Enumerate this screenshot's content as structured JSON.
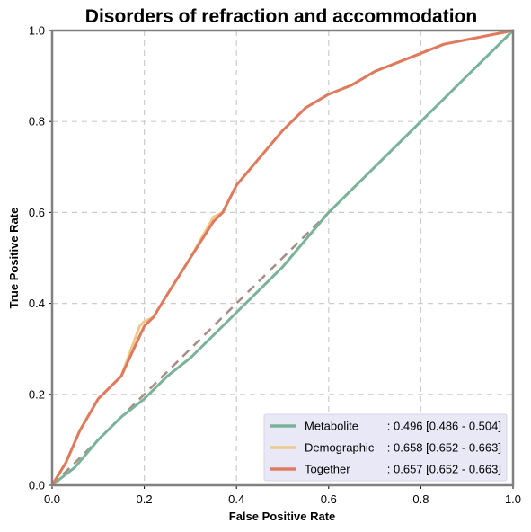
{
  "chart_data": {
    "type": "line",
    "title": "Disorders of refraction and accommodation",
    "xlabel": "False Positive Rate",
    "ylabel": "True Positive Rate",
    "xlim": [
      0,
      1
    ],
    "ylim": [
      0,
      1
    ],
    "xticks": [
      "0.0",
      "0.2",
      "0.4",
      "0.6",
      "0.8",
      "1.0"
    ],
    "yticks": [
      "0.0",
      "0.2",
      "0.4",
      "0.6",
      "0.8",
      "1.0"
    ],
    "grid": true,
    "legend_position": "bottom-right",
    "diagonal": {
      "x": [
        0,
        1
      ],
      "y": [
        0,
        1
      ],
      "color": "#a88d85",
      "style": "dashed"
    },
    "series": [
      {
        "name": "Metabolite",
        "auc_label": ": 0.496 [0.486 - 0.504]",
        "color": "#7ab39a",
        "x": [
          0,
          0.05,
          0.1,
          0.15,
          0.2,
          0.25,
          0.3,
          0.35,
          0.4,
          0.45,
          0.5,
          0.55,
          0.6,
          0.65,
          0.7,
          0.75,
          0.8,
          0.85,
          0.9,
          0.95,
          1.0
        ],
        "y": [
          0,
          0.04,
          0.1,
          0.15,
          0.19,
          0.24,
          0.28,
          0.33,
          0.38,
          0.43,
          0.48,
          0.54,
          0.6,
          0.65,
          0.7,
          0.75,
          0.8,
          0.85,
          0.9,
          0.95,
          1.0
        ]
      },
      {
        "name": "Demographic",
        "auc_label": ": 0.658 [0.652 - 0.663]",
        "color": "#f0c98a",
        "x": [
          0,
          0.03,
          0.06,
          0.1,
          0.15,
          0.19,
          0.2,
          0.22,
          0.25,
          0.3,
          0.35,
          0.37,
          0.4,
          0.45,
          0.5,
          0.55,
          0.6,
          0.65,
          0.7,
          0.75,
          0.8,
          0.85,
          0.9,
          0.95,
          1.0
        ],
        "y": [
          0,
          0.05,
          0.12,
          0.19,
          0.24,
          0.35,
          0.36,
          0.37,
          0.42,
          0.5,
          0.59,
          0.6,
          0.66,
          0.72,
          0.78,
          0.83,
          0.86,
          0.88,
          0.91,
          0.93,
          0.95,
          0.97,
          0.98,
          0.99,
          1.0
        ]
      },
      {
        "name": "Together",
        "auc_label": ": 0.657 [0.652 - 0.663]",
        "color": "#e07a5f",
        "x": [
          0,
          0.03,
          0.06,
          0.1,
          0.15,
          0.2,
          0.22,
          0.25,
          0.3,
          0.35,
          0.37,
          0.4,
          0.45,
          0.5,
          0.55,
          0.6,
          0.65,
          0.7,
          0.75,
          0.8,
          0.85,
          0.9,
          0.95,
          1.0
        ],
        "y": [
          0,
          0.05,
          0.12,
          0.19,
          0.24,
          0.35,
          0.37,
          0.42,
          0.5,
          0.58,
          0.6,
          0.66,
          0.72,
          0.78,
          0.83,
          0.86,
          0.88,
          0.91,
          0.93,
          0.95,
          0.97,
          0.98,
          0.99,
          1.0
        ]
      }
    ]
  }
}
